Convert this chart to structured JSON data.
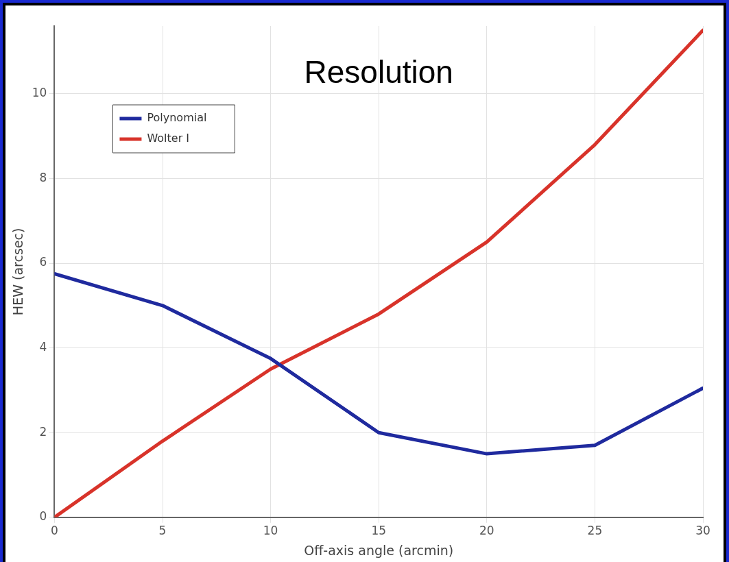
{
  "chart_data": {
    "type": "line",
    "title": "Resolution",
    "xlabel": "Off-axis angle (arcmin)",
    "ylabel": "HEW (arcsec)",
    "x": [
      0,
      5,
      10,
      15,
      20,
      25,
      30
    ],
    "series": [
      {
        "name": "Polynomial",
        "color": "#1f2a9e",
        "values": [
          5.75,
          5.0,
          3.75,
          2.0,
          1.5,
          1.7,
          3.05
        ]
      },
      {
        "name": "Wolter I",
        "color": "#d8332a",
        "values": [
          0,
          1.8,
          3.5,
          4.8,
          6.5,
          8.8,
          11.5
        ]
      }
    ],
    "xlim": [
      0,
      30
    ],
    "xticks": [
      0,
      5,
      10,
      15,
      20,
      25,
      30
    ],
    "ylim": [
      0,
      11.6
    ],
    "yticks": [
      0,
      2,
      4,
      6,
      8,
      10
    ],
    "grid": true,
    "legend": "top left",
    "marker": "none",
    "line_style": "solid"
  }
}
